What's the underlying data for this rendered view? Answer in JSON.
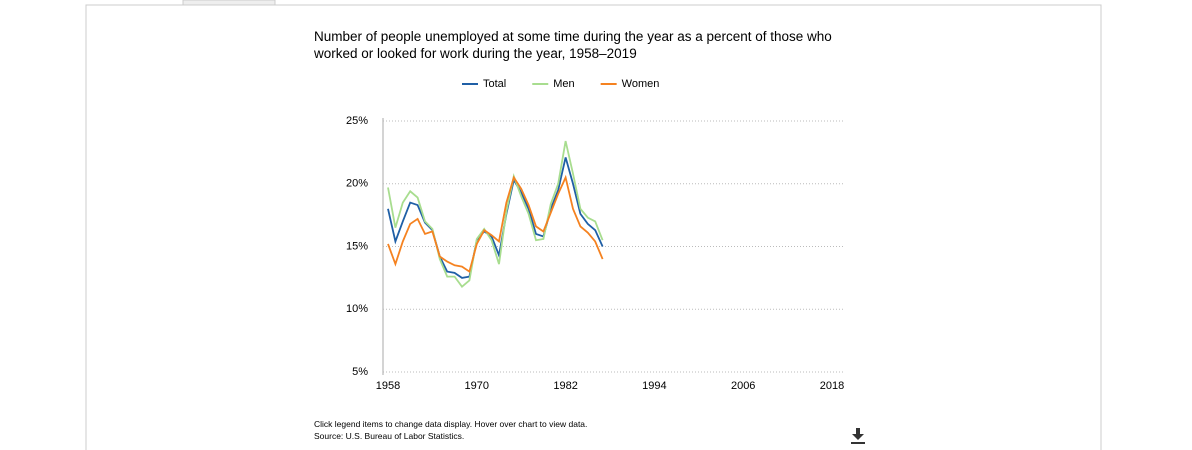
{
  "chart_data": {
    "type": "line",
    "title": "Number of people unemployed at some time during the year as a percent of those who worked or looked for work during the year, 1958–2019",
    "x": [
      1958,
      1959,
      1960,
      1961,
      1962,
      1963,
      1964,
      1965,
      1966,
      1967,
      1968,
      1969,
      1970,
      1971,
      1972,
      1973,
      1974,
      1975,
      1976,
      1977,
      1978,
      1979,
      1980,
      1981,
      1982,
      1983,
      1984,
      1985,
      1986,
      1987
    ],
    "series": [
      {
        "name": "Total",
        "color": "#1f5fa6",
        "values": [
          18.0,
          15.4,
          17.0,
          18.5,
          18.3,
          16.9,
          16.3,
          14.2,
          13.0,
          12.9,
          12.5,
          12.6,
          15.5,
          16.2,
          15.8,
          14.3,
          17.6,
          20.3,
          19.3,
          18.0,
          16.0,
          15.8,
          18.0,
          19.5,
          22.1,
          20.0,
          17.6,
          16.8,
          16.3,
          15.0
        ]
      },
      {
        "name": "Men",
        "color": "#a8dd8f",
        "values": [
          19.7,
          16.5,
          18.5,
          19.4,
          18.9,
          17.0,
          16.4,
          14.0,
          12.6,
          12.6,
          11.8,
          12.3,
          15.6,
          16.4,
          15.5,
          13.6,
          17.8,
          20.6,
          19.0,
          17.6,
          15.5,
          15.6,
          18.4,
          20.0,
          23.4,
          20.8,
          18.0,
          17.3,
          17.0,
          15.5
        ]
      },
      {
        "name": "Women",
        "color": "#f58220",
        "values": [
          15.2,
          13.6,
          15.4,
          16.8,
          17.2,
          16.0,
          16.2,
          14.2,
          13.8,
          13.5,
          13.4,
          13.0,
          15.2,
          16.3,
          15.9,
          15.4,
          18.5,
          20.5,
          19.6,
          18.3,
          16.6,
          16.2,
          17.7,
          19.2,
          20.5,
          18.0,
          16.6,
          16.1,
          15.4,
          14.0
        ]
      }
    ],
    "xlim": [
      1958,
      2018
    ],
    "xticks": [
      1958,
      1970,
      1982,
      1994,
      2006,
      2018
    ],
    "ylim": [
      5,
      25
    ],
    "yticks": [
      {
        "value": 5,
        "label": "5%"
      },
      {
        "value": 10,
        "label": "10%"
      },
      {
        "value": 15,
        "label": "15%"
      },
      {
        "value": 20,
        "label": "20%"
      },
      {
        "value": 25,
        "label": "25%"
      }
    ],
    "grid": true,
    "notes": [
      "Click legend items to change data display. Hover over chart to view data.",
      "Source: U.S. Bureau of Labor Statistics."
    ]
  }
}
